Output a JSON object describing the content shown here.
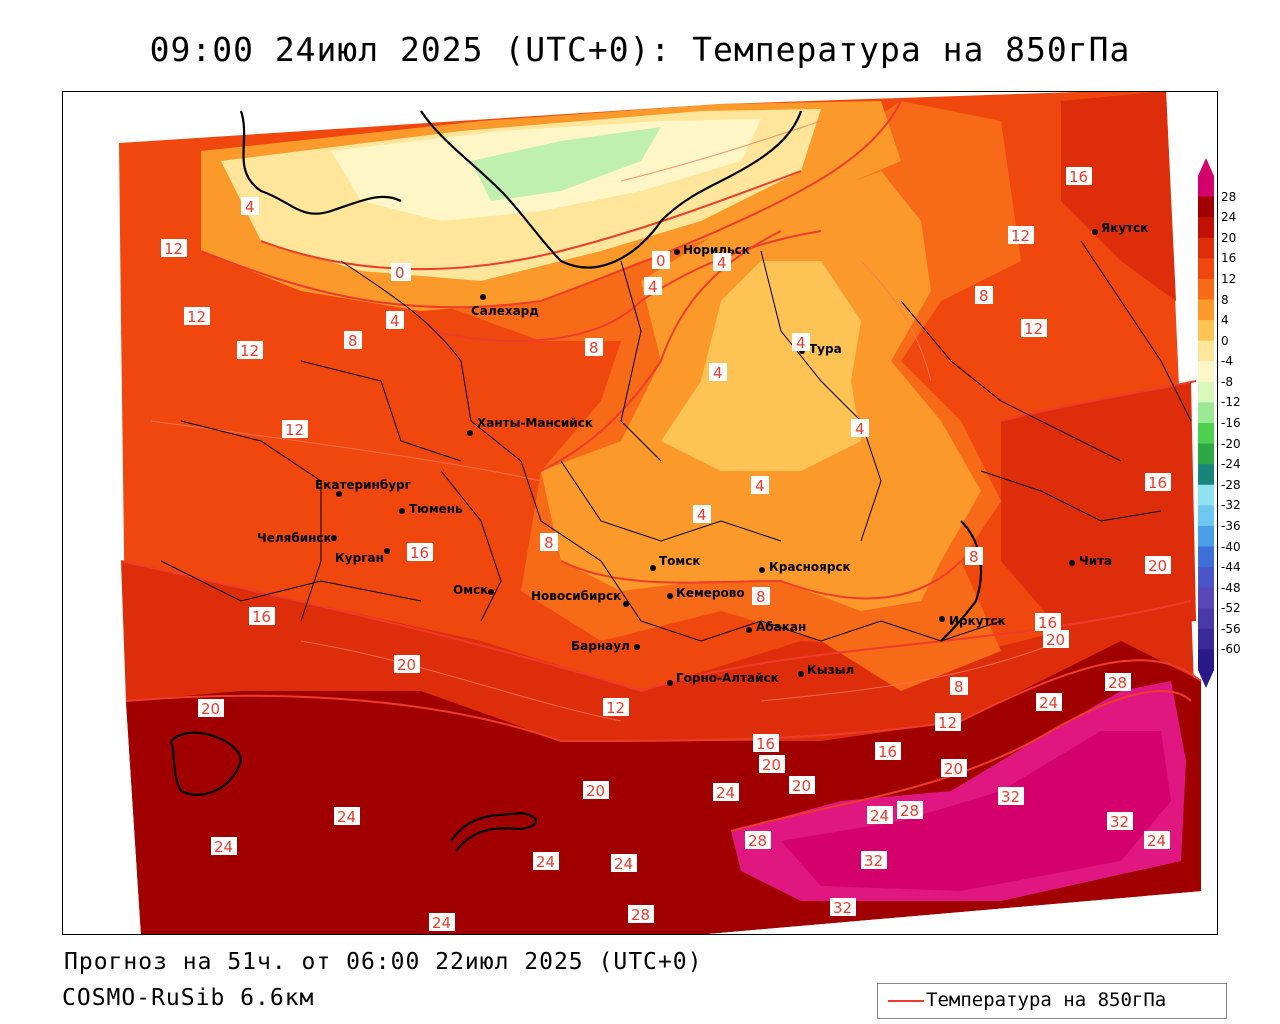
{
  "title": "09:00 24июл 2025 (UTC+0): Температура на 850гПа",
  "forecast_line": "Прогноз на 51ч. от 06:00 22июл 2025 (UTC+0)",
  "model_line": "COSMO-RuSib 6.6км",
  "legend": {
    "label": "Температура на 850гПа",
    "line_color": "#ef3b2c"
  },
  "colorbar": {
    "ticks": [
      "28",
      "24",
      "20",
      "16",
      "12",
      "8",
      "4",
      "0",
      "-4",
      "-8",
      "-12",
      "-16",
      "-20",
      "-24",
      "-28",
      "-32",
      "-36",
      "-40",
      "-44",
      "-48",
      "-52",
      "-56",
      "-60"
    ],
    "colors": [
      "#d4006c",
      "#a00000",
      "#c21004",
      "#de2d0b",
      "#f0470f",
      "#f76a18",
      "#fb9a2a",
      "#fdc455",
      "#ffe69a",
      "#fff6c8",
      "#d8f7b8",
      "#9be895",
      "#4fcf4f",
      "#2ea845",
      "#19857a",
      "#8fe3f0",
      "#6cc8f0",
      "#4aa0e8",
      "#3f6fd8",
      "#4a55c8",
      "#5a47b8",
      "#4a3aa8",
      "#3a2a98",
      "#2a1a88"
    ]
  },
  "cities": [
    {
      "name": "Норильск"
    },
    {
      "name": "Якутск"
    },
    {
      "name": "Салехард"
    },
    {
      "name": "Тура"
    },
    {
      "name": "Ханты-Мансийск"
    },
    {
      "name": "Екатеринбург"
    },
    {
      "name": "Тюмень"
    },
    {
      "name": "Челябинск"
    },
    {
      "name": "Курган"
    },
    {
      "name": "Омск"
    },
    {
      "name": "Новосибирск"
    },
    {
      "name": "Томск"
    },
    {
      "name": "Красноярск"
    },
    {
      "name": "Кемерово"
    },
    {
      "name": "Абакан"
    },
    {
      "name": "Барнаул"
    },
    {
      "name": "Иркутск"
    },
    {
      "name": "Чита"
    },
    {
      "name": "Кызыл"
    },
    {
      "name": "Горно-Алтайск"
    }
  ],
  "isotherm_labels": [
    "0",
    "0",
    "4",
    "4",
    "4",
    "4",
    "4",
    "4",
    "4",
    "4",
    "4",
    "8",
    "8",
    "8",
    "8",
    "8",
    "8",
    "8",
    "12",
    "12",
    "12",
    "12",
    "12",
    "12",
    "12",
    "12",
    "16",
    "16",
    "16",
    "16",
    "16",
    "16",
    "16",
    "20",
    "20",
    "20",
    "20",
    "20",
    "20",
    "20",
    "20",
    "24",
    "24",
    "24",
    "24",
    "24",
    "24",
    "24",
    "24",
    "24",
    "28",
    "28",
    "28",
    "28",
    "32",
    "32",
    "32",
    "32"
  ]
}
